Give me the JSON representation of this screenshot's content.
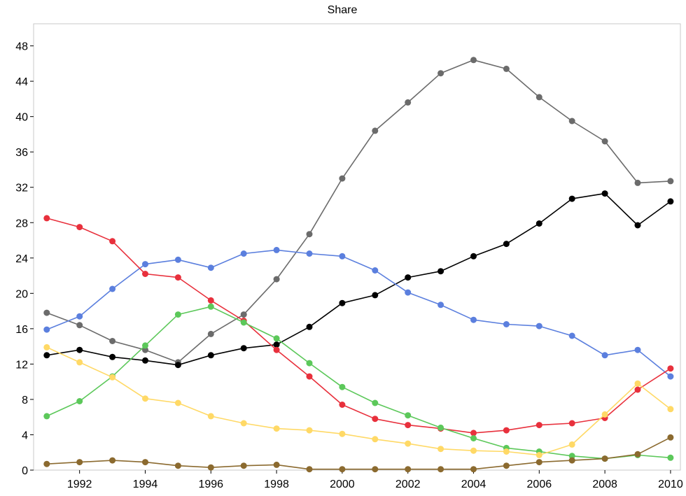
{
  "chart_data": {
    "type": "line",
    "title": "Share",
    "xlabel": "",
    "ylabel": "",
    "xlim": [
      1990.6,
      2010.3
    ],
    "ylim": [
      0,
      50.5
    ],
    "xticks": [
      1992,
      1994,
      1996,
      1998,
      2000,
      2002,
      2004,
      2006,
      2008,
      2010
    ],
    "yticks": [
      0,
      4,
      8,
      12,
      16,
      20,
      24,
      28,
      32,
      36,
      40,
      44,
      48
    ],
    "grid": false,
    "legend": "none",
    "x": [
      1991,
      1992,
      1993,
      1994,
      1995,
      1996,
      1997,
      1998,
      1999,
      2000,
      2001,
      2002,
      2003,
      2004,
      2005,
      2006,
      2007,
      2008,
      2009,
      2010
    ],
    "series": [
      {
        "color": "#6b6b6b",
        "values": [
          17.8,
          16.4,
          14.6,
          13.6,
          12.2,
          15.4,
          17.6,
          21.6,
          26.7,
          33.0,
          38.4,
          41.6,
          44.9,
          46.4,
          45.4,
          42.2,
          39.5,
          37.2,
          32.5,
          32.7
        ]
      },
      {
        "color": "#000000",
        "values": [
          13.0,
          13.6,
          12.8,
          12.4,
          11.9,
          13.0,
          13.8,
          14.2,
          16.2,
          18.9,
          19.8,
          21.8,
          22.5,
          24.2,
          25.6,
          27.9,
          30.7,
          31.3,
          27.7,
          30.4
        ]
      },
      {
        "color": "#5b7fde",
        "values": [
          15.9,
          17.4,
          20.5,
          23.3,
          23.8,
          22.9,
          24.5,
          24.9,
          24.5,
          24.2,
          22.6,
          20.1,
          18.7,
          17.0,
          16.5,
          16.3,
          15.2,
          13.0,
          13.6,
          10.6
        ]
      },
      {
        "color": "#e8303c",
        "values": [
          28.5,
          27.5,
          25.9,
          22.2,
          21.8,
          19.2,
          16.9,
          13.6,
          10.6,
          7.4,
          5.8,
          5.1,
          4.7,
          4.2,
          4.5,
          5.1,
          5.3,
          5.9,
          9.1,
          11.5
        ]
      },
      {
        "color": "#5cc85a",
        "values": [
          6.1,
          7.8,
          10.6,
          14.1,
          17.6,
          18.5,
          16.7,
          14.9,
          12.1,
          9.4,
          7.6,
          6.2,
          4.8,
          3.6,
          2.5,
          2.1,
          1.6,
          1.3,
          1.7,
          1.4
        ]
      },
      {
        "color": "#ffd966",
        "values": [
          13.9,
          12.2,
          10.5,
          8.1,
          7.6,
          6.1,
          5.3,
          4.7,
          4.5,
          4.1,
          3.5,
          3.0,
          2.4,
          2.2,
          2.1,
          1.7,
          2.9,
          6.3,
          9.8,
          6.9
        ]
      },
      {
        "color": "#8b6a2f",
        "values": [
          0.7,
          0.9,
          1.1,
          0.9,
          0.5,
          0.3,
          0.5,
          0.6,
          0.1,
          0.1,
          0.1,
          0.1,
          0.1,
          0.1,
          0.5,
          0.9,
          1.1,
          1.3,
          1.8,
          3.7
        ]
      }
    ]
  }
}
